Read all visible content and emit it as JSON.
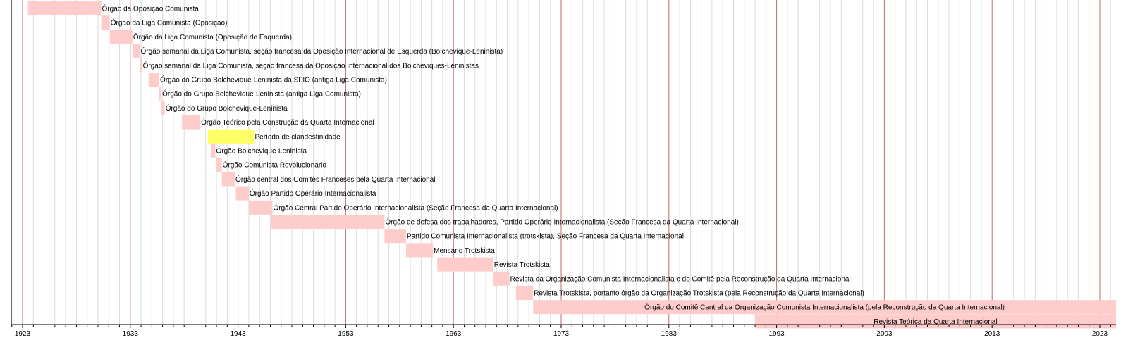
{
  "chart_data": {
    "type": "gantt-timeline",
    "title": "",
    "xlabel": "",
    "ylabel": "",
    "xlim": [
      1922,
      2024.5
    ],
    "major_ticks": [
      1923,
      1933,
      1943,
      1953,
      1963,
      1973,
      1983,
      1993,
      2003,
      2013,
      2023
    ],
    "tick_labels": [
      "1923",
      "1933",
      "1943",
      "1953",
      "1963",
      "1973",
      "1983",
      "1993",
      "2003",
      "2013",
      "2023"
    ],
    "minor_tick_step_years": 1,
    "grid": true,
    "colors": {
      "bar": "#ffcccc",
      "highlight_bar": "#ffff66",
      "major_grid": "#c46a6a",
      "minor_grid": "#dcdcdc",
      "axis": "#000000"
    },
    "items": [
      {
        "label": "Órgão da Oposição Comunista",
        "start": 1923.5,
        "end": 1930.3
      },
      {
        "label": "Órgão da Liga Comunista (Oposição)",
        "start": 1930.3,
        "end": 1931.1
      },
      {
        "label": "Órgão da Liga Comunista (Oposição de Esquerda)",
        "start": 1931.1,
        "end": 1933.2
      },
      {
        "label": "Órgão semanal da Liga Comunista, seção francesa da Oposição Internacional de Esquerda (Bolchevique-Leninista)",
        "start": 1933.2,
        "end": 1933.9
      },
      {
        "label": "Órgão semanal da Liga Comunista, seção francesa da Oposição Internacional dos Bolcheviques-Leninistas",
        "start": 1933.9,
        "end": 1934.1
      },
      {
        "label": "Órgão do Grupo Bolchevique-Leninista da SFIO (antiga Liga Comunista)",
        "start": 1934.7,
        "end": 1935.7
      },
      {
        "label": "Órgão do Grupo Bolchevique-Leninista (antiga Liga Comunista)",
        "start": 1935.7,
        "end": 1935.9
      },
      {
        "label": "Órgão do Grupo Bolchevique-Leninista",
        "start": 1935.9,
        "end": 1936.2
      },
      {
        "label": "Órgão Teórico pela Construção da Quarta Internacional",
        "start": 1937.8,
        "end": 1939.5
      },
      {
        "label": "Período de clandestinidade",
        "start": 1940.2,
        "end": 1944.5,
        "highlight": true
      },
      {
        "label": "Órgão Bolchevique-Leninista",
        "start": 1940.5,
        "end": 1940.9
      },
      {
        "label": "Órgão Comunista Revolucionário",
        "start": 1941.0,
        "end": 1941.5
      },
      {
        "label": "Órgão central dos Comitês Franceses pela Quarta Internacional",
        "start": 1941.5,
        "end": 1942.7
      },
      {
        "label": "Órgão Partido Operário Internacionalista",
        "start": 1942.8,
        "end": 1944.0
      },
      {
        "label": "Órgão Central Partido Operário Internacionalista (Seção Francesa da Quarta Internacional)",
        "start": 1944.0,
        "end": 1946.2
      },
      {
        "label": "Órgão de defesa dos trabalhadores, Partido Operário Internacionalista (Seção Francesa da Quarta Internacional)",
        "start": 1946.1,
        "end": 1956.6
      },
      {
        "label": "Partido Comunista Internacionalista (trotskista), Seção Francesa da Quarta Internacional",
        "start": 1956.6,
        "end": 1958.6
      },
      {
        "label": "Mensário Trotskista",
        "start": 1958.6,
        "end": 1961.1
      },
      {
        "label": "Revista Trotskista",
        "start": 1961.5,
        "end": 1966.7
      },
      {
        "label": "Revista da Organização Comunista Internacionalista e do Comitê pela Reconstrução da Quarta Internacional",
        "start": 1966.7,
        "end": 1968.2
      },
      {
        "label": "Revista Trotskista, portanto órgão da Organização Trotskista (pela Reconstrução da Quarta Internacional)",
        "start": 1968.8,
        "end": 1970.4
      },
      {
        "label": "Órgão do Comitê Central da Organização Comunista Internacionalista (pela Reconstrução da Quarta Internacional)",
        "start": 1970.4,
        "end": 2024.5
      },
      {
        "label": "Revista Teórica da Quarta Internacional",
        "start": 1991.0,
        "end": 2024.5
      }
    ]
  }
}
